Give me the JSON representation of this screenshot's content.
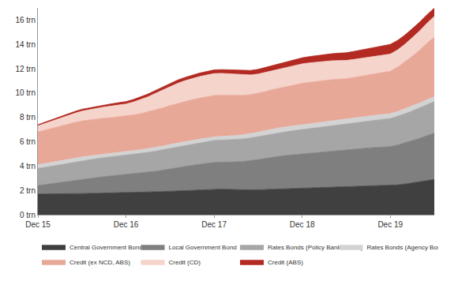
{
  "chart_data": {
    "type": "area",
    "stacked": true,
    "grid": false,
    "legend": "bottom",
    "categories": [
      "Dec 15",
      null,
      null,
      null,
      null,
      null,
      null,
      null,
      null,
      null,
      null,
      null,
      "Dec 16",
      null,
      null,
      null,
      null,
      null,
      null,
      null,
      null,
      null,
      null,
      null,
      "Dec 17",
      null,
      null,
      null,
      null,
      null,
      null,
      null,
      null,
      null,
      null,
      null,
      "Dec 18",
      null,
      null,
      null,
      null,
      null,
      null,
      null,
      null,
      null,
      null,
      null,
      "Dec 19",
      null,
      null,
      null,
      null,
      null,
      null
    ],
    "ylim": [
      0,
      17
    ],
    "yticks": [
      {
        "value": 0,
        "label": "0 trn"
      },
      {
        "value": 2,
        "label": "2 trn"
      },
      {
        "value": 4,
        "label": "4 trn"
      },
      {
        "value": 6,
        "label": "6 trn"
      },
      {
        "value": 8,
        "label": "8 trn"
      },
      {
        "value": 10,
        "label": "10 trn"
      },
      {
        "value": 12,
        "label": "12 trn"
      },
      {
        "value": 14,
        "label": "14 trn"
      },
      {
        "value": 16,
        "label": "16 trn"
      }
    ],
    "series": [
      {
        "name": "Central Government Bond",
        "color": "#404040",
        "values": [
          1.7,
          1.7,
          1.71,
          1.72,
          1.72,
          1.73,
          1.74,
          1.75,
          1.76,
          1.77,
          1.78,
          1.79,
          1.8,
          1.82,
          1.84,
          1.86,
          1.88,
          1.9,
          1.93,
          1.96,
          1.99,
          2.02,
          2.05,
          2.08,
          2.1,
          2.1,
          2.08,
          2.06,
          2.05,
          2.04,
          2.05,
          2.07,
          2.09,
          2.11,
          2.14,
          2.17,
          2.2,
          2.21,
          2.22,
          2.24,
          2.25,
          2.27,
          2.28,
          2.3,
          2.32,
          2.34,
          2.36,
          2.38,
          2.4,
          2.45,
          2.52,
          2.6,
          2.7,
          2.8,
          2.9
        ]
      },
      {
        "name": "Local Government Bond",
        "color": "#7f7f7f",
        "values": [
          0.7,
          0.78,
          0.86,
          0.94,
          1.02,
          1.1,
          1.18,
          1.24,
          1.3,
          1.36,
          1.41,
          1.46,
          1.5,
          1.54,
          1.58,
          1.63,
          1.69,
          1.76,
          1.84,
          1.91,
          1.98,
          2.04,
          2.09,
          2.14,
          2.2,
          2.22,
          2.24,
          2.28,
          2.33,
          2.4,
          2.48,
          2.56,
          2.64,
          2.7,
          2.74,
          2.77,
          2.8,
          2.83,
          2.87,
          2.92,
          2.97,
          3.02,
          3.06,
          3.09,
          3.12,
          3.15,
          3.17,
          3.19,
          3.2,
          3.28,
          3.38,
          3.48,
          3.58,
          3.7,
          3.8
        ]
      },
      {
        "name": "Rates Bonds (Policy Bank Bonds)",
        "color": "#a6a6a6",
        "values": [
          1.4,
          1.42,
          1.45,
          1.47,
          1.49,
          1.51,
          1.53,
          1.54,
          1.55,
          1.56,
          1.57,
          1.58,
          1.6,
          1.61,
          1.62,
          1.64,
          1.66,
          1.68,
          1.7,
          1.72,
          1.74,
          1.75,
          1.77,
          1.78,
          1.8,
          1.81,
          1.82,
          1.84,
          1.85,
          1.87,
          1.89,
          1.91,
          1.93,
          1.95,
          1.96,
          1.98,
          2.0,
          2.02,
          2.04,
          2.07,
          2.09,
          2.12,
          2.14,
          2.17,
          2.19,
          2.22,
          2.25,
          2.27,
          2.3,
          2.35,
          2.4,
          2.45,
          2.5,
          2.55,
          2.6
        ]
      },
      {
        "name": "Rates Bonds (Agency Bonds)",
        "color": "#d3d3d3",
        "values": [
          0.3,
          0.3,
          0.3,
          0.3,
          0.3,
          0.3,
          0.3,
          0.3,
          0.3,
          0.3,
          0.3,
          0.3,
          0.3,
          0.3,
          0.3,
          0.3,
          0.3,
          0.3,
          0.3,
          0.3,
          0.3,
          0.3,
          0.3,
          0.3,
          0.3,
          0.31,
          0.32,
          0.33,
          0.34,
          0.35,
          0.36,
          0.37,
          0.38,
          0.39,
          0.4,
          0.4,
          0.4,
          0.4,
          0.4,
          0.4,
          0.4,
          0.4,
          0.4,
          0.4,
          0.4,
          0.4,
          0.4,
          0.4,
          0.4,
          0.4,
          0.4,
          0.4,
          0.4,
          0.4,
          0.4
        ]
      },
      {
        "name": "Credit (ex NCD, ABS)",
        "color": "#e8a898",
        "values": [
          2.7,
          2.76,
          2.82,
          2.87,
          2.91,
          2.94,
          2.96,
          2.96,
          2.95,
          2.94,
          2.92,
          2.91,
          2.9,
          2.93,
          2.97,
          3.02,
          3.08,
          3.14,
          3.2,
          3.25,
          3.3,
          3.34,
          3.37,
          3.39,
          3.4,
          3.38,
          3.35,
          3.3,
          3.25,
          3.21,
          3.2,
          3.22,
          3.25,
          3.28,
          3.32,
          3.36,
          3.4,
          3.42,
          3.43,
          3.42,
          3.39,
          3.34,
          3.3,
          3.32,
          3.36,
          3.4,
          3.44,
          3.47,
          3.5,
          3.65,
          3.85,
          4.1,
          4.35,
          4.65,
          4.9
        ]
      },
      {
        "name": "Credit (CD)",
        "color": "#f5d4cc",
        "values": [
          0.5,
          0.55,
          0.6,
          0.65,
          0.7,
          0.75,
          0.8,
          0.84,
          0.88,
          0.92,
          0.95,
          0.98,
          1.0,
          1.06,
          1.14,
          1.24,
          1.36,
          1.48,
          1.58,
          1.65,
          1.7,
          1.74,
          1.77,
          1.79,
          1.8,
          1.8,
          1.78,
          1.74,
          1.68,
          1.62,
          1.58,
          1.57,
          1.57,
          1.58,
          1.59,
          1.6,
          1.6,
          1.6,
          1.59,
          1.57,
          1.55,
          1.52,
          1.5,
          1.48,
          1.46,
          1.44,
          1.42,
          1.41,
          1.4,
          1.42,
          1.46,
          1.52,
          1.58,
          1.64,
          1.7
        ]
      },
      {
        "name": "Credit (ABS)",
        "color": "#b22a22",
        "values": [
          0.1,
          0.11,
          0.12,
          0.13,
          0.14,
          0.15,
          0.16,
          0.16,
          0.17,
          0.18,
          0.18,
          0.19,
          0.2,
          0.21,
          0.22,
          0.23,
          0.24,
          0.25,
          0.26,
          0.27,
          0.27,
          0.28,
          0.29,
          0.29,
          0.3,
          0.31,
          0.32,
          0.33,
          0.35,
          0.37,
          0.39,
          0.41,
          0.43,
          0.45,
          0.47,
          0.48,
          0.5,
          0.52,
          0.54,
          0.56,
          0.58,
          0.61,
          0.63,
          0.66,
          0.69,
          0.72,
          0.75,
          0.78,
          0.8,
          0.78,
          0.76,
          0.74,
          0.72,
          0.7,
          0.68
        ]
      }
    ]
  }
}
